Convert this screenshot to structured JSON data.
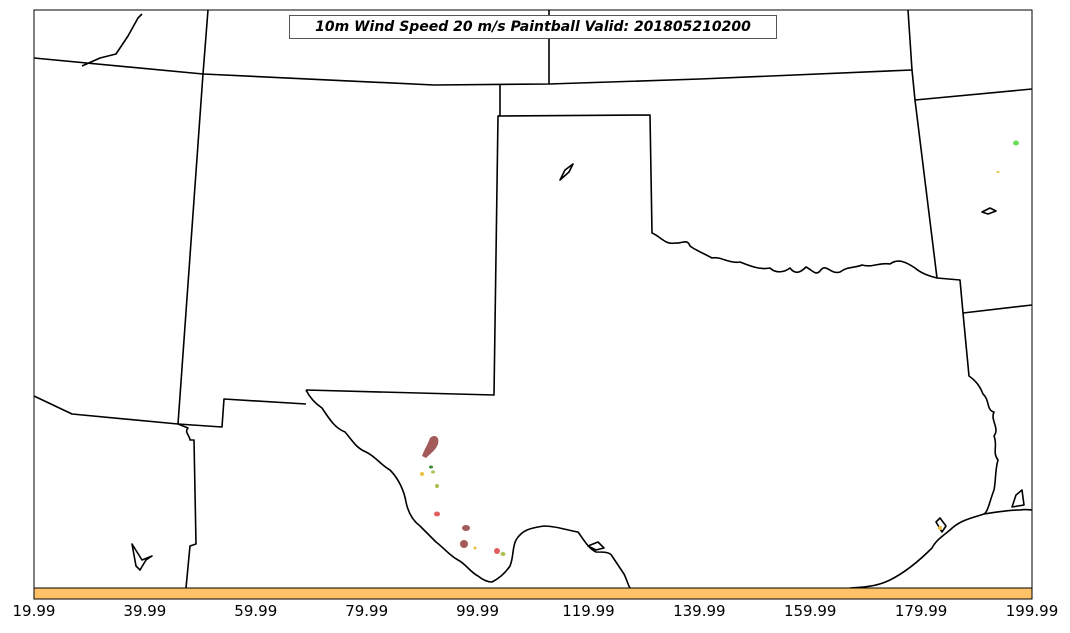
{
  "title": "10m Wind Speed 20 m/s Paintball Valid: 201805210200",
  "colorbar": {
    "fill_color": "#ffc266",
    "tick_labels": [
      "19.99",
      "39.99",
      "59.99",
      "79.99",
      "99.99",
      "119.99",
      "139.99",
      "159.99",
      "179.99",
      "199.99"
    ]
  },
  "colors": {
    "state_borders": "#000000",
    "paint_darkred": "#a35a5a",
    "paint_red": "#e06060",
    "paint_green": "#66dd55",
    "paint_yellow": "#e8c040",
    "paint_olive": "#aac050"
  }
}
